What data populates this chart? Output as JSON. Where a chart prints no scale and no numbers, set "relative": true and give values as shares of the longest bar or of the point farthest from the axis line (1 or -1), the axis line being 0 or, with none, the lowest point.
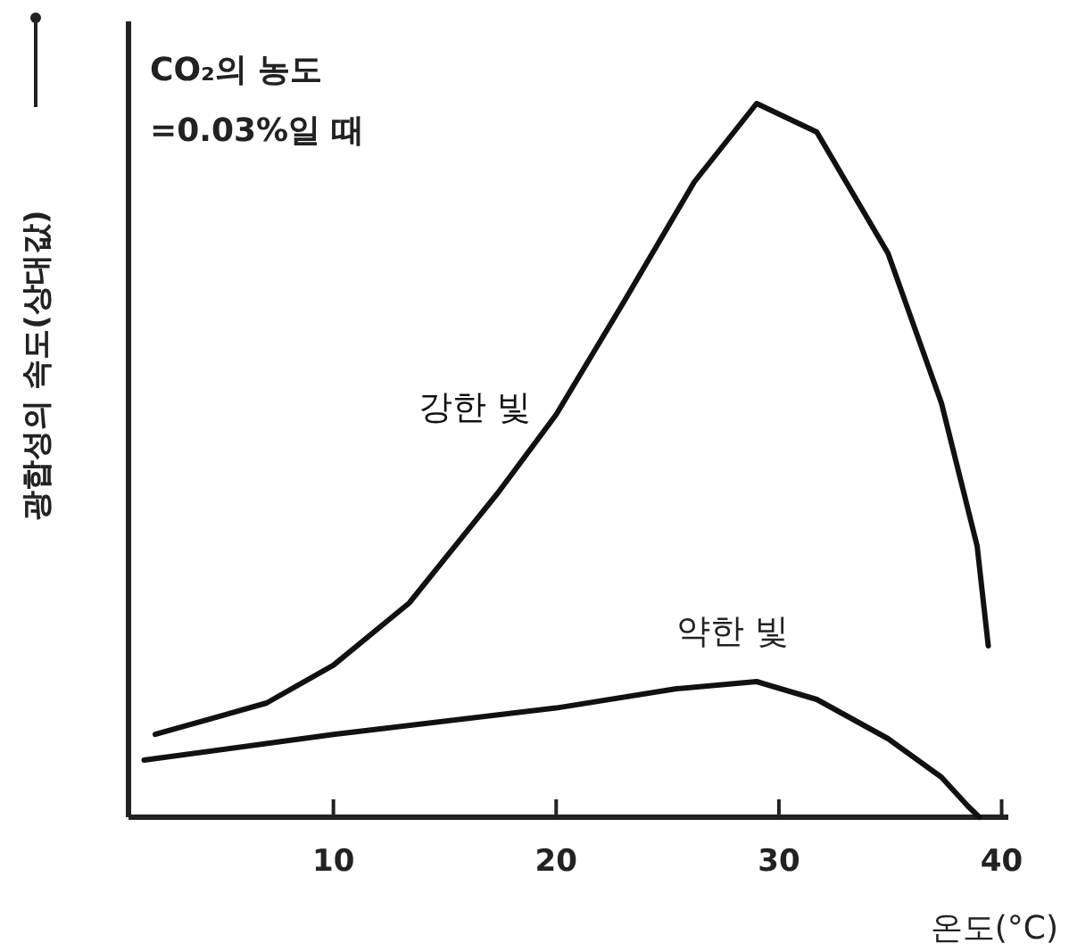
{
  "chart_data": {
    "type": "line",
    "relative": true,
    "xlabel": "온도(°C)",
    "ylabel": "광합성의 속도(상대값)",
    "annotations": [
      "CO₂의 농도\n=0.03%일 때"
    ],
    "xlim": [
      0.8,
      40.3
    ],
    "xticks": [
      10,
      20,
      30,
      40
    ],
    "tick_labels": "x",
    "grid": false,
    "marker": "none",
    "line_style": "solid",
    "series": [
      {
        "name": "강한 빛",
        "color": "#111111",
        "x": [
          2,
          7,
          10,
          13.4,
          17.4,
          20,
          23,
          26.2,
          29,
          31.7,
          34.9,
          37.3,
          38.9,
          39.4
        ],
        "values": [
          0.116,
          0.16,
          0.213,
          0.3,
          0.455,
          0.564,
          0.72,
          0.89,
          1,
          0.96,
          0.79,
          0.58,
          0.38,
          0.24
        ]
      },
      {
        "name": "약한 빛",
        "color": "#111111",
        "x": [
          1.5,
          10,
          20,
          25.4,
          29,
          31.7,
          34.9,
          37.3,
          38.5,
          39
        ],
        "values": [
          0.08,
          0.116,
          0.153,
          0.18,
          0.19,
          0.165,
          0.11,
          0.056,
          0.015,
          0
        ]
      }
    ]
  }
}
